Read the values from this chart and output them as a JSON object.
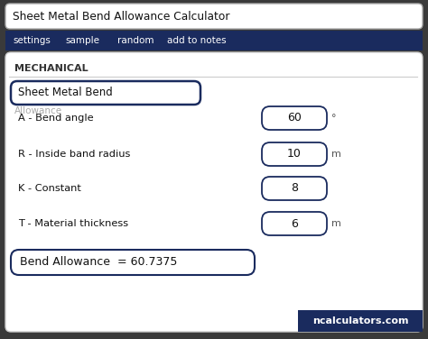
{
  "title": "Sheet Metal Bend Allowance Calculator",
  "nav_items": [
    "settings",
    "sample",
    "random",
    "add to notes"
  ],
  "nav_bg": "#1a2b5e",
  "nav_text_color": "#ffffff",
  "section_label": "MECHANICAL",
  "dropdown_label": "Sheet Metal Bend",
  "dropdown2_label": "Allowance",
  "fields": [
    {
      "label": "A - Bend angle",
      "value": "60",
      "unit": "°"
    },
    {
      "label": "R - Inside band radius",
      "value": "10",
      "unit": "m"
    },
    {
      "label": "K - Constant",
      "value": "8",
      "unit": ""
    },
    {
      "label": "T - Material thickness",
      "value": "6",
      "unit": "m"
    }
  ],
  "result_label": "Bend Allowance  = 60.7375",
  "watermark": "ncalculators.com",
  "watermark_bg": "#1a2b5e",
  "watermark_text_color": "#ffffff",
  "outer_bg": "#3a3a3a",
  "card_color": "#ffffff",
  "border_color": "#1a2b5e",
  "label_color": "#111111",
  "unit_color": "#555555",
  "mechanical_color": "#333333",
  "input_box_color": "#ffffff",
  "title_bar_color": "#ffffff",
  "title_border": "#aaaaaa",
  "card_border": "#cccccc"
}
